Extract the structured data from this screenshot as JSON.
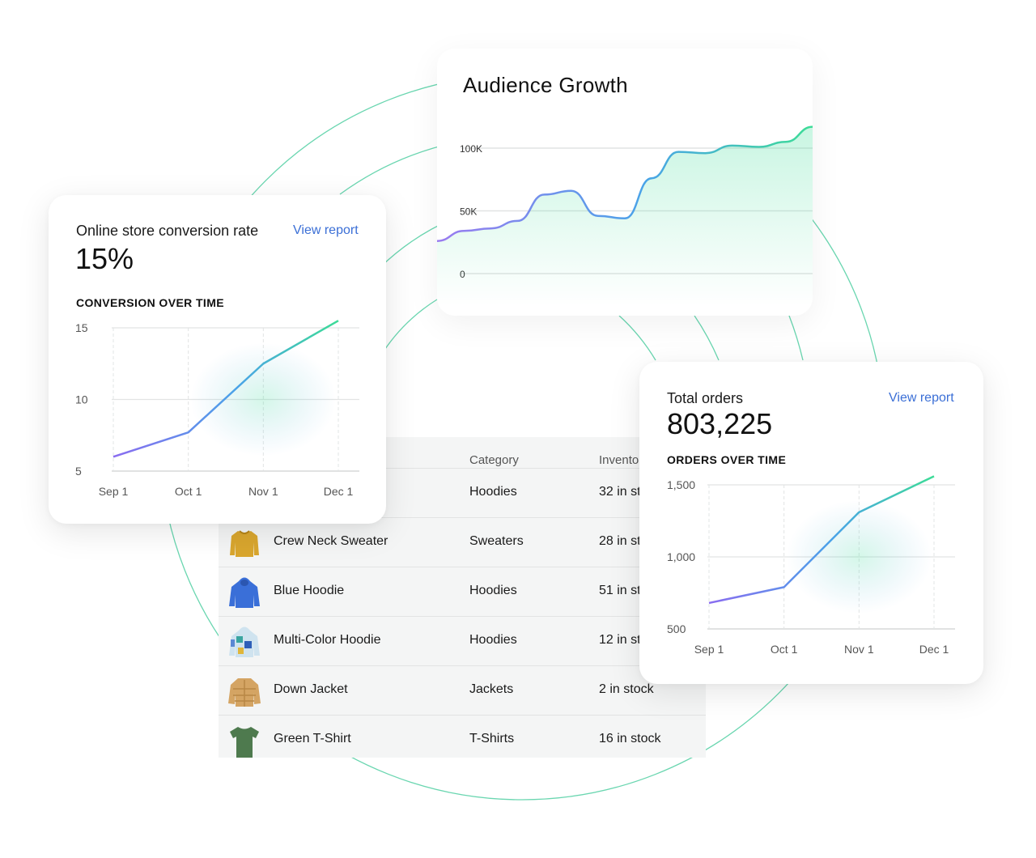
{
  "colors": {
    "accent_green": "#3ddc97",
    "accent_purple": "#8a6cf0",
    "accent_blue": "#4aa3e8",
    "link_blue": "#3b6fd6",
    "arc_green": "#5fd3a8"
  },
  "audience": {
    "title": "Audience Growth"
  },
  "conversion_card": {
    "title": "Online store conversion rate",
    "link": "View report",
    "metric": "15%",
    "subtitle": "CONVERSION OVER TIME"
  },
  "orders_card": {
    "title": "Total orders",
    "link": "View report",
    "metric": "803,225",
    "subtitle": "ORDERS OVER TIME"
  },
  "table": {
    "headers": [
      "Category",
      "Invento"
    ],
    "rows": [
      {
        "name": "",
        "category": "Hoodies",
        "inventory": "32 in st",
        "icon": "hoodie-icon"
      },
      {
        "name": "Crew Neck Sweater",
        "category": "Sweaters",
        "inventory": "28 in st",
        "icon": "sweater-icon"
      },
      {
        "name": "Blue Hoodie",
        "category": "Hoodies",
        "inventory": "51 in st",
        "icon": "hoodie-icon"
      },
      {
        "name": "Multi-Color Hoodie",
        "category": "Hoodies",
        "inventory": "12 in st",
        "icon": "hoodie-icon"
      },
      {
        "name": "Down Jacket",
        "category": "Jackets",
        "inventory": "2 in stock",
        "icon": "jacket-icon"
      },
      {
        "name": "Green T-Shirt",
        "category": "T-Shirts",
        "inventory": "16 in stock",
        "icon": "tshirt-icon"
      }
    ]
  },
  "chart_data": [
    {
      "type": "area",
      "title": "Audience Growth",
      "y_ticks": [
        "100K",
        "50K",
        "0"
      ],
      "ylim": [
        0,
        120000
      ],
      "grid": true,
      "x": [
        0,
        1,
        2,
        3,
        4,
        5,
        6,
        7,
        8,
        9,
        10,
        11,
        12,
        13,
        14
      ],
      "values": [
        26000,
        34000,
        36000,
        42000,
        63000,
        66000,
        46000,
        44000,
        76000,
        97000,
        96000,
        102000,
        101000,
        105000,
        117000
      ]
    },
    {
      "type": "line",
      "categories": [
        "Sep 1",
        "Oct 1",
        "Nov 1",
        "Dec 1"
      ],
      "y_ticks": [
        "15",
        "10",
        "5"
      ],
      "ylim": [
        5,
        15
      ],
      "grid": true,
      "values": [
        6.0,
        7.7,
        12.5,
        15.5
      ]
    },
    {
      "type": "line",
      "categories": [
        "Sep 1",
        "Oct 1",
        "Nov 1",
        "Dec 1"
      ],
      "y_ticks": [
        "1,500",
        "1,000",
        "500"
      ],
      "ylim": [
        500,
        1500
      ],
      "grid": true,
      "values": [
        680,
        790,
        1310,
        1560
      ]
    }
  ]
}
